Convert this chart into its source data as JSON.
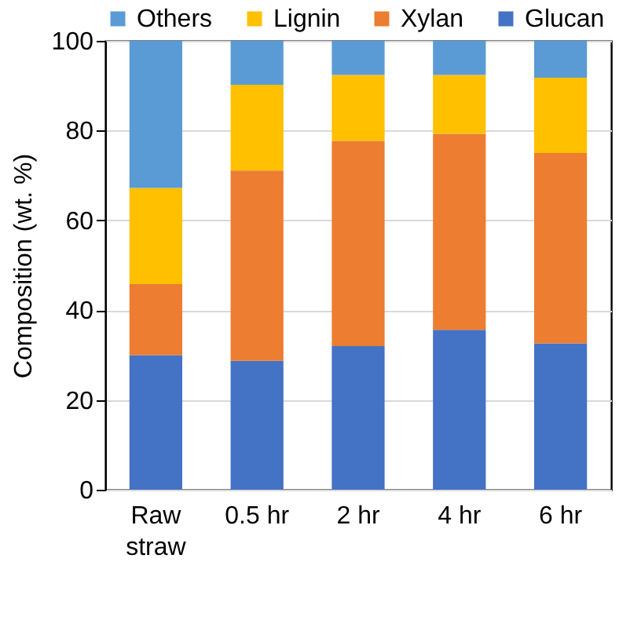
{
  "chart_data": {
    "type": "bar",
    "stacked": true,
    "ylabel": "Composition (wt. %)",
    "categories": [
      "Raw straw",
      "0.5 hr",
      "2 hr",
      "4 hr",
      "6 hr"
    ],
    "series": [
      {
        "name": "Glucan",
        "color": "#4472c4",
        "values": [
          30.0,
          28.7,
          32.0,
          35.6,
          32.6
        ]
      },
      {
        "name": "Xylan",
        "color": "#ed7d31",
        "values": [
          15.8,
          42.4,
          45.7,
          43.7,
          42.4
        ]
      },
      {
        "name": "Lignin",
        "color": "#ffc000",
        "values": [
          21.4,
          19.1,
          14.7,
          13.1,
          16.8
        ]
      },
      {
        "name": "Others",
        "color": "#5b9bd5",
        "values": [
          32.8,
          9.8,
          7.6,
          7.6,
          8.2
        ]
      }
    ],
    "ylim": [
      0,
      100
    ],
    "yticks": [
      0,
      20,
      40,
      60,
      80,
      100
    ],
    "grid": "y",
    "legend": "top"
  }
}
